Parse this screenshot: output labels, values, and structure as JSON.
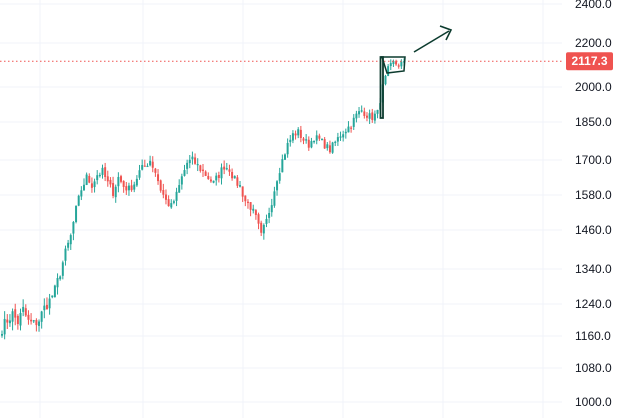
{
  "chart_data": {
    "type": "candlestick",
    "ylim": [
      960,
      2440
    ],
    "y_ticks": [
      "1000.0",
      "1080.0",
      "1160.0",
      "1240.0",
      "1340.0",
      "1460.0",
      "1580.0",
      "1700.0",
      "1850.0",
      "2000.0",
      "2200.0",
      "2400.0"
    ],
    "last_price": "2117.3",
    "last_price_value": 2117.3,
    "grid": true,
    "colors": {
      "up": "#26a69a",
      "down": "#ef5350",
      "price_line": "#ef5350",
      "price_tag_bg": "#ef5350",
      "annotation": "#0c3b2e",
      "grid": "#f0f3fa",
      "axis_text": "#131722"
    },
    "closes": [
      1180,
      1200,
      1215,
      1195,
      1225,
      1195,
      1190,
      1200,
      1230,
      1250,
      1280,
      1330,
      1390,
      1440,
      1530,
      1600,
      1640,
      1615,
      1650,
      1660,
      1620,
      1590,
      1640,
      1610,
      1600,
      1620,
      1660,
      1680,
      1700,
      1660,
      1600,
      1560,
      1540,
      1580,
      1640,
      1690,
      1700,
      1680,
      1660,
      1640,
      1620,
      1650,
      1680,
      1670,
      1630,
      1610,
      1560,
      1540,
      1500,
      1440,
      1490,
      1560,
      1640,
      1700,
      1760,
      1800,
      1810,
      1780,
      1760,
      1790,
      1780,
      1760,
      1740,
      1770,
      1800,
      1820,
      1840,
      1880,
      1900,
      1880,
      1870,
      1890,
      2000,
      2080,
      2110,
      2100,
      2117
    ],
    "annotations": [
      "flagpole-rectangle",
      "flag-rectangle",
      "up-arrow"
    ]
  }
}
